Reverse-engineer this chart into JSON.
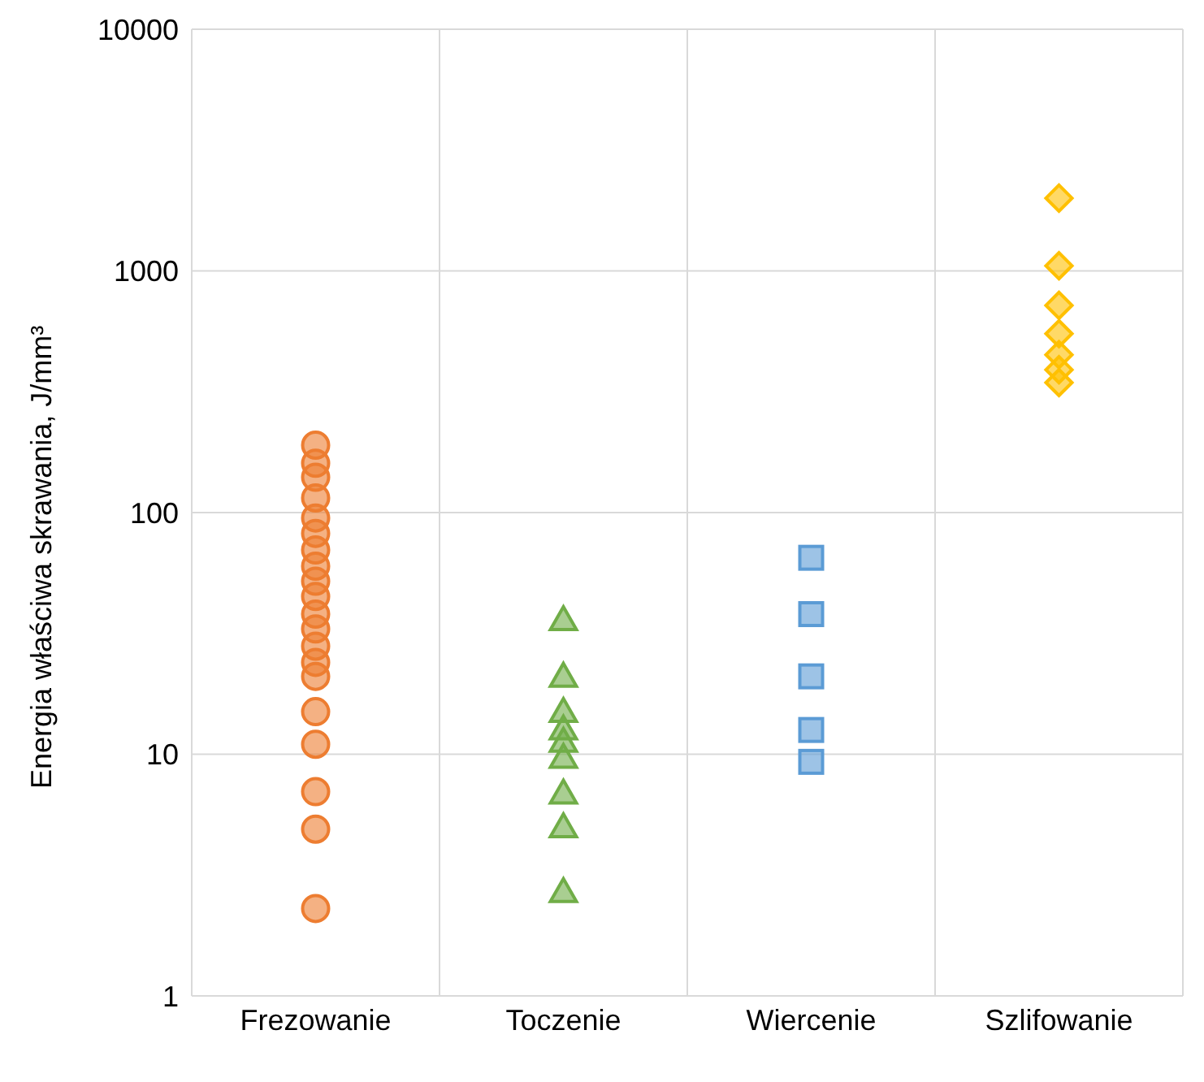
{
  "chart_data": {
    "type": "scatter",
    "ylabel": "Energia właściwa skrawania, J/mm³",
    "categories": [
      "Frezowanie",
      "Toczenie",
      "Wiercenie",
      "Szlifowanie"
    ],
    "log": "y",
    "ylim": [
      1,
      10000
    ],
    "yticks": [
      1,
      10,
      100,
      1000,
      10000
    ],
    "grid": true,
    "series": [
      {
        "color": "#ed7d31",
        "marker": "circle",
        "x": [
          "Frezowanie",
          "Frezowanie",
          "Frezowanie",
          "Frezowanie",
          "Frezowanie",
          "Frezowanie",
          "Frezowanie",
          "Frezowanie",
          "Frezowanie",
          "Frezowanie",
          "Frezowanie",
          "Frezowanie",
          "Frezowanie",
          "Frezowanie",
          "Frezowanie",
          "Frezowanie",
          "Frezowanie",
          "Frezowanie",
          "Frezowanie",
          "Frezowanie"
        ],
        "values": [
          190,
          160,
          140,
          115,
          95,
          82,
          70,
          60,
          52,
          45,
          38,
          33,
          28,
          24,
          21,
          15,
          11,
          7,
          4.9,
          2.3
        ]
      },
      {
        "color": "#70ad47",
        "marker": "triangle",
        "x": [
          "Toczenie",
          "Toczenie",
          "Toczenie",
          "Toczenie",
          "Toczenie",
          "Toczenie",
          "Toczenie",
          "Toczenie",
          "Toczenie"
        ],
        "values": [
          36,
          21,
          15,
          12.7,
          11.3,
          9.7,
          6.9,
          5,
          2.7
        ]
      },
      {
        "color": "#5b9bd5",
        "marker": "square",
        "x": [
          "Wiercenie",
          "Wiercenie",
          "Wiercenie",
          "Wiercenie",
          "Wiercenie"
        ],
        "values": [
          65,
          38,
          21,
          12.6,
          9.3
        ]
      },
      {
        "color": "#ffc000",
        "marker": "diamond",
        "x": [
          "Szlifowanie",
          "Szlifowanie",
          "Szlifowanie",
          "Szlifowanie",
          "Szlifowanie",
          "Szlifowanie",
          "Szlifowanie"
        ],
        "values": [
          2000,
          1050,
          720,
          550,
          450,
          390,
          345
        ]
      }
    ]
  }
}
